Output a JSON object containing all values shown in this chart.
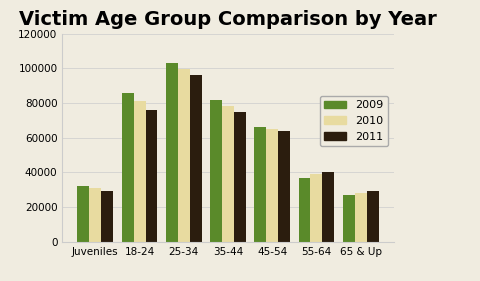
{
  "title": "Victim Age Group Comparison by Year",
  "categories": [
    "Juveniles",
    "18-24",
    "25-34",
    "35-44",
    "45-54",
    "55-64",
    "65 & Up"
  ],
  "series": {
    "2009": [
      32000,
      86000,
      103000,
      82000,
      66000,
      37000,
      27000
    ],
    "2010": [
      31000,
      81000,
      99500,
      78000,
      65000,
      39000,
      28000
    ],
    "2011": [
      29500,
      76000,
      96000,
      75000,
      64000,
      40000,
      29000
    ]
  },
  "colors": {
    "2009": "#5a8a2a",
    "2010": "#e8dba0",
    "2011": "#2b1d0e"
  },
  "ylim": [
    0,
    120000
  ],
  "yticks": [
    0,
    20000,
    40000,
    60000,
    80000,
    100000,
    120000
  ],
  "background_color": "#f0ece0",
  "plot_bg_color": "#f0ece0",
  "title_fontsize": 14,
  "bar_width": 0.27
}
